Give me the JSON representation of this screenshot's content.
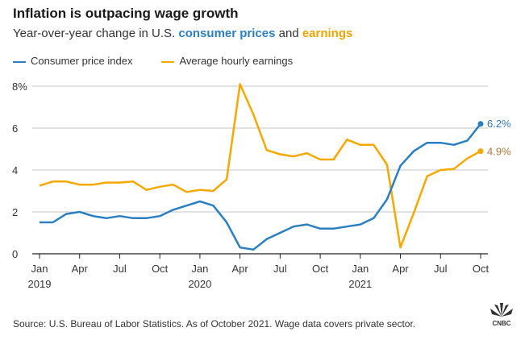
{
  "chart_data": {
    "type": "line",
    "title": "Inflation is outpacing wage growth",
    "subtitle_parts": [
      "Year-over-year change in U.S. ",
      "consumer prices",
      " and ",
      "earnings"
    ],
    "x": [
      "2019-01",
      "2019-02",
      "2019-03",
      "2019-04",
      "2019-05",
      "2019-06",
      "2019-07",
      "2019-08",
      "2019-09",
      "2019-10",
      "2019-11",
      "2019-12",
      "2020-01",
      "2020-02",
      "2020-03",
      "2020-04",
      "2020-05",
      "2020-06",
      "2020-07",
      "2020-08",
      "2020-09",
      "2020-10",
      "2020-11",
      "2020-12",
      "2021-01",
      "2021-02",
      "2021-03",
      "2021-04",
      "2021-05",
      "2021-06",
      "2021-07",
      "2021-08",
      "2021-09",
      "2021-10"
    ],
    "series": [
      {
        "name": "Consumer price index",
        "color": "#2a7fc1",
        "end_label": "6.2%",
        "end_label_color": "#3578b9",
        "values": [
          1.5,
          1.5,
          1.9,
          2.0,
          1.8,
          1.7,
          1.8,
          1.7,
          1.7,
          1.8,
          2.1,
          2.3,
          2.5,
          2.3,
          1.5,
          0.3,
          0.2,
          0.7,
          1.0,
          1.3,
          1.4,
          1.2,
          1.2,
          1.3,
          1.4,
          1.7,
          2.6,
          4.2,
          4.9,
          5.3,
          5.3,
          5.2,
          5.4,
          6.2
        ]
      },
      {
        "name": "Average hourly earnings",
        "color": "#f5a800",
        "end_label": "4.9%",
        "end_label_color": "#a8793a",
        "values": [
          3.25,
          3.45,
          3.45,
          3.3,
          3.3,
          3.4,
          3.4,
          3.45,
          3.05,
          3.2,
          3.3,
          2.95,
          3.05,
          3.0,
          3.55,
          8.1,
          6.65,
          4.95,
          4.75,
          4.65,
          4.8,
          4.5,
          4.5,
          5.45,
          5.2,
          5.2,
          4.25,
          0.3,
          1.95,
          3.7,
          4.0,
          4.05,
          4.55,
          4.9
        ]
      }
    ],
    "ylim": [
      0,
      8
    ],
    "yticks": [
      {
        "v": 0,
        "label": "0"
      },
      {
        "v": 2,
        "label": "2"
      },
      {
        "v": 4,
        "label": "4"
      },
      {
        "v": 6,
        "label": "6"
      },
      {
        "v": 8,
        "label": "8%"
      }
    ],
    "xticks": [
      {
        "i": 0,
        "label": "Jan",
        "year": "2019"
      },
      {
        "i": 3,
        "label": "Apr"
      },
      {
        "i": 6,
        "label": "Jul"
      },
      {
        "i": 9,
        "label": "Oct"
      },
      {
        "i": 12,
        "label": "Jan",
        "year": "2020"
      },
      {
        "i": 15,
        "label": "Apr"
      },
      {
        "i": 18,
        "label": "Jul"
      },
      {
        "i": 21,
        "label": "Oct"
      },
      {
        "i": 24,
        "label": "Jan",
        "year": "2021"
      },
      {
        "i": 27,
        "label": "Apr"
      },
      {
        "i": 30,
        "label": "Jul"
      },
      {
        "i": 33,
        "label": "Oct"
      }
    ],
    "grid": true,
    "legend": "top-left"
  },
  "source": "Source: U.S. Bureau of Labor Statistics. As of October 2021. Wage data covers private sector.",
  "logo": "CNBC"
}
